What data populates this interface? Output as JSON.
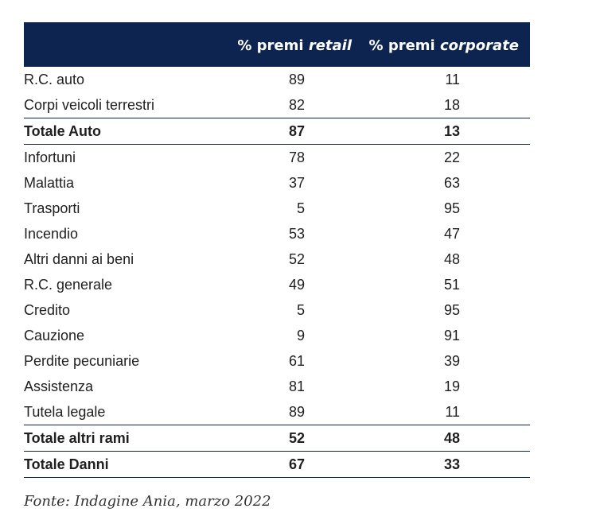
{
  "header": {
    "col1_prefix": "% premi ",
    "col1_em": "retail",
    "col2_prefix": "% premi ",
    "col2_em": "corporate",
    "background": "#0e2450"
  },
  "rows": [
    {
      "label": "R.C. auto",
      "retail": "89",
      "corporate": "11",
      "total": false
    },
    {
      "label": "Corpi veicoli terrestri",
      "retail": "82",
      "corporate": "18",
      "total": false
    },
    {
      "label": "Totale Auto",
      "retail": "87",
      "corporate": "13",
      "total": true
    },
    {
      "label": "Infortuni",
      "retail": "78",
      "corporate": "22",
      "total": false
    },
    {
      "label": "Malattia",
      "retail": "37",
      "corporate": "63",
      "total": false
    },
    {
      "label": "Trasporti",
      "retail": "5",
      "corporate": "95",
      "total": false
    },
    {
      "label": "Incendio",
      "retail": "53",
      "corporate": "47",
      "total": false
    },
    {
      "label": "Altri danni ai beni",
      "retail": "52",
      "corporate": "48",
      "total": false
    },
    {
      "label": "R.C. generale",
      "retail": "49",
      "corporate": "51",
      "total": false
    },
    {
      "label": "Credito",
      "retail": "5",
      "corporate": "95",
      "total": false
    },
    {
      "label": "Cauzione",
      "retail": "9",
      "corporate": "91",
      "total": false
    },
    {
      "label": "Perdite pecuniarie",
      "retail": "61",
      "corporate": "39",
      "total": false
    },
    {
      "label": "Assistenza",
      "retail": "81",
      "corporate": "19",
      "total": false
    },
    {
      "label": "Tutela legale",
      "retail": "89",
      "corporate": "11",
      "total": false
    },
    {
      "label": "Totale altri rami",
      "retail": "52",
      "corporate": "48",
      "total": true
    },
    {
      "label": "Totale Danni",
      "retail": "67",
      "corporate": "33",
      "total": true
    }
  ],
  "source": "Fonte: Indagine Ania, marzo 2022"
}
